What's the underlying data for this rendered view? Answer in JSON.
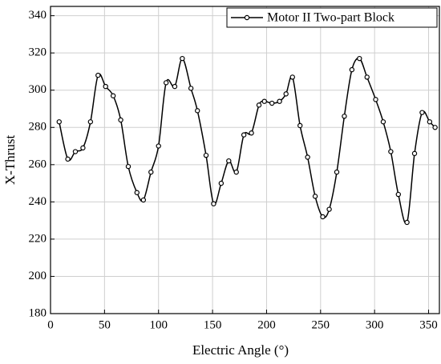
{
  "chart_data": {
    "type": "line",
    "x_label": "Electric Angle (°)",
    "y_label": "X-Thrust",
    "x": [
      8,
      16,
      23,
      30,
      37,
      44,
      51,
      58,
      65,
      72,
      80,
      86,
      93,
      100,
      107,
      115,
      122,
      130,
      136,
      144,
      151,
      158,
      165,
      172,
      179,
      186,
      193,
      198,
      205,
      212,
      218,
      224,
      231,
      238,
      245,
      252,
      258,
      265,
      272,
      279,
      286,
      293,
      301,
      308,
      315,
      322,
      330,
      337,
      344,
      351,
      356
    ],
    "series": [
      {
        "name": "Motor II Two-part Block",
        "color": "#000000",
        "values": [
          283,
          263,
          267,
          269,
          283,
          308,
          302,
          297,
          284,
          259,
          245,
          241,
          256,
          270,
          304,
          302,
          317,
          301,
          289,
          265,
          239,
          250,
          262,
          256,
          276,
          277,
          292,
          294,
          293,
          294,
          298,
          307,
          281,
          264,
          243,
          232,
          236,
          256,
          286,
          311,
          317,
          307,
          295,
          283,
          267,
          244,
          229,
          266,
          288,
          283,
          280
        ]
      }
    ],
    "xlim": [
      0,
      360
    ],
    "xticks": [
      0,
      50,
      100,
      150,
      200,
      250,
      300,
      350
    ],
    "ylim": [
      180,
      345
    ],
    "yticks": [
      180,
      200,
      220,
      240,
      260,
      280,
      300,
      320,
      340
    ],
    "grid": true,
    "legend": "upper right"
  }
}
